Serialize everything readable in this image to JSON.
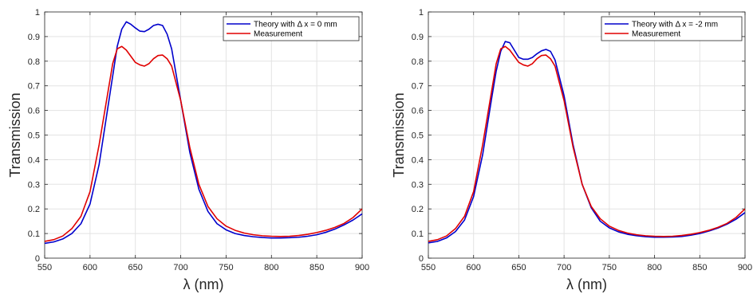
{
  "chart_data": [
    {
      "type": "line",
      "title": "",
      "xlabel": "λ (nm)",
      "ylabel": "Transmission",
      "xlim": [
        550,
        900
      ],
      "ylim": [
        0,
        1
      ],
      "xticks": [
        550,
        600,
        650,
        700,
        750,
        800,
        850,
        900
      ],
      "yticks": [
        0,
        0.1,
        0.2,
        0.3,
        0.4,
        0.5,
        0.6,
        0.7,
        0.8,
        0.9,
        1
      ],
      "xtick_labels": [
        "550",
        "600",
        "650",
        "700",
        "750",
        "800",
        "850",
        "900"
      ],
      "ytick_labels": [
        "0",
        "0.1",
        "0.2",
        "0.3",
        "0.4",
        "0.5",
        "0.6",
        "0.7",
        "0.8",
        "0.9",
        "1"
      ],
      "grid": true,
      "legend_position": "top-right",
      "series": [
        {
          "name": "Theory with Δ x = 0 mm",
          "color": "#0000cc",
          "x": [
            550,
            560,
            570,
            580,
            590,
            600,
            610,
            620,
            630,
            635,
            640,
            645,
            650,
            655,
            660,
            665,
            670,
            675,
            680,
            685,
            690,
            700,
            710,
            720,
            730,
            740,
            750,
            760,
            770,
            780,
            790,
            800,
            810,
            820,
            830,
            840,
            850,
            860,
            870,
            880,
            890,
            900
          ],
          "y": [
            0.06,
            0.066,
            0.078,
            0.1,
            0.14,
            0.22,
            0.38,
            0.62,
            0.86,
            0.93,
            0.96,
            0.95,
            0.935,
            0.922,
            0.92,
            0.93,
            0.945,
            0.95,
            0.945,
            0.91,
            0.85,
            0.64,
            0.43,
            0.28,
            0.19,
            0.14,
            0.115,
            0.1,
            0.092,
            0.087,
            0.084,
            0.082,
            0.082,
            0.083,
            0.085,
            0.089,
            0.095,
            0.105,
            0.118,
            0.135,
            0.155,
            0.18
          ]
        },
        {
          "name": "Measurement",
          "color": "#e00000",
          "x": [
            550,
            560,
            570,
            580,
            590,
            600,
            610,
            620,
            625,
            630,
            635,
            640,
            645,
            650,
            655,
            660,
            665,
            670,
            675,
            680,
            685,
            690,
            700,
            710,
            720,
            730,
            740,
            750,
            760,
            770,
            780,
            790,
            800,
            810,
            820,
            830,
            840,
            850,
            860,
            870,
            880,
            890,
            900
          ],
          "y": [
            0.068,
            0.075,
            0.09,
            0.12,
            0.17,
            0.27,
            0.46,
            0.68,
            0.79,
            0.85,
            0.86,
            0.845,
            0.82,
            0.795,
            0.785,
            0.78,
            0.79,
            0.81,
            0.823,
            0.825,
            0.81,
            0.78,
            0.64,
            0.45,
            0.3,
            0.21,
            0.16,
            0.13,
            0.113,
            0.102,
            0.095,
            0.091,
            0.089,
            0.088,
            0.089,
            0.092,
            0.097,
            0.104,
            0.113,
            0.125,
            0.141,
            0.165,
            0.2
          ]
        }
      ]
    },
    {
      "type": "line",
      "title": "",
      "xlabel": "λ (nm)",
      "ylabel": "Transmission",
      "xlim": [
        550,
        900
      ],
      "ylim": [
        0,
        1
      ],
      "xticks": [
        550,
        600,
        650,
        700,
        750,
        800,
        850,
        900
      ],
      "yticks": [
        0,
        0.1,
        0.2,
        0.3,
        0.4,
        0.5,
        0.6,
        0.7,
        0.8,
        0.9,
        1
      ],
      "xtick_labels": [
        "550",
        "600",
        "650",
        "700",
        "750",
        "800",
        "850",
        "900"
      ],
      "ytick_labels": [
        "0",
        "0.1",
        "0.2",
        "0.3",
        "0.4",
        "0.5",
        "0.6",
        "0.7",
        "0.8",
        "0.9",
        "1"
      ],
      "grid": true,
      "legend_position": "top-right",
      "series": [
        {
          "name": "Theory with Δ x = -2 mm",
          "color": "#0000cc",
          "x": [
            550,
            560,
            570,
            580,
            590,
            600,
            610,
            620,
            625,
            630,
            635,
            640,
            645,
            650,
            655,
            660,
            665,
            670,
            675,
            680,
            685,
            690,
            700,
            710,
            720,
            730,
            740,
            750,
            760,
            770,
            780,
            790,
            800,
            810,
            820,
            830,
            840,
            850,
            860,
            870,
            880,
            890,
            900
          ],
          "y": [
            0.062,
            0.068,
            0.082,
            0.108,
            0.155,
            0.25,
            0.42,
            0.65,
            0.76,
            0.84,
            0.88,
            0.875,
            0.845,
            0.815,
            0.808,
            0.808,
            0.815,
            0.83,
            0.842,
            0.848,
            0.84,
            0.805,
            0.66,
            0.46,
            0.3,
            0.205,
            0.15,
            0.123,
            0.107,
            0.097,
            0.091,
            0.087,
            0.085,
            0.085,
            0.086,
            0.088,
            0.093,
            0.1,
            0.11,
            0.122,
            0.138,
            0.158,
            0.185
          ]
        },
        {
          "name": "Measurement",
          "color": "#e00000",
          "x": [
            550,
            560,
            570,
            580,
            590,
            600,
            610,
            620,
            625,
            630,
            635,
            640,
            645,
            650,
            655,
            660,
            665,
            670,
            675,
            680,
            685,
            690,
            700,
            710,
            720,
            730,
            740,
            750,
            760,
            770,
            780,
            790,
            800,
            810,
            820,
            830,
            840,
            850,
            860,
            870,
            880,
            890,
            900
          ],
          "y": [
            0.068,
            0.075,
            0.09,
            0.12,
            0.17,
            0.27,
            0.46,
            0.68,
            0.79,
            0.85,
            0.86,
            0.845,
            0.82,
            0.795,
            0.785,
            0.78,
            0.79,
            0.81,
            0.823,
            0.825,
            0.81,
            0.78,
            0.64,
            0.45,
            0.3,
            0.21,
            0.16,
            0.13,
            0.113,
            0.102,
            0.095,
            0.091,
            0.089,
            0.088,
            0.089,
            0.092,
            0.097,
            0.104,
            0.113,
            0.125,
            0.141,
            0.165,
            0.2
          ]
        }
      ]
    }
  ]
}
